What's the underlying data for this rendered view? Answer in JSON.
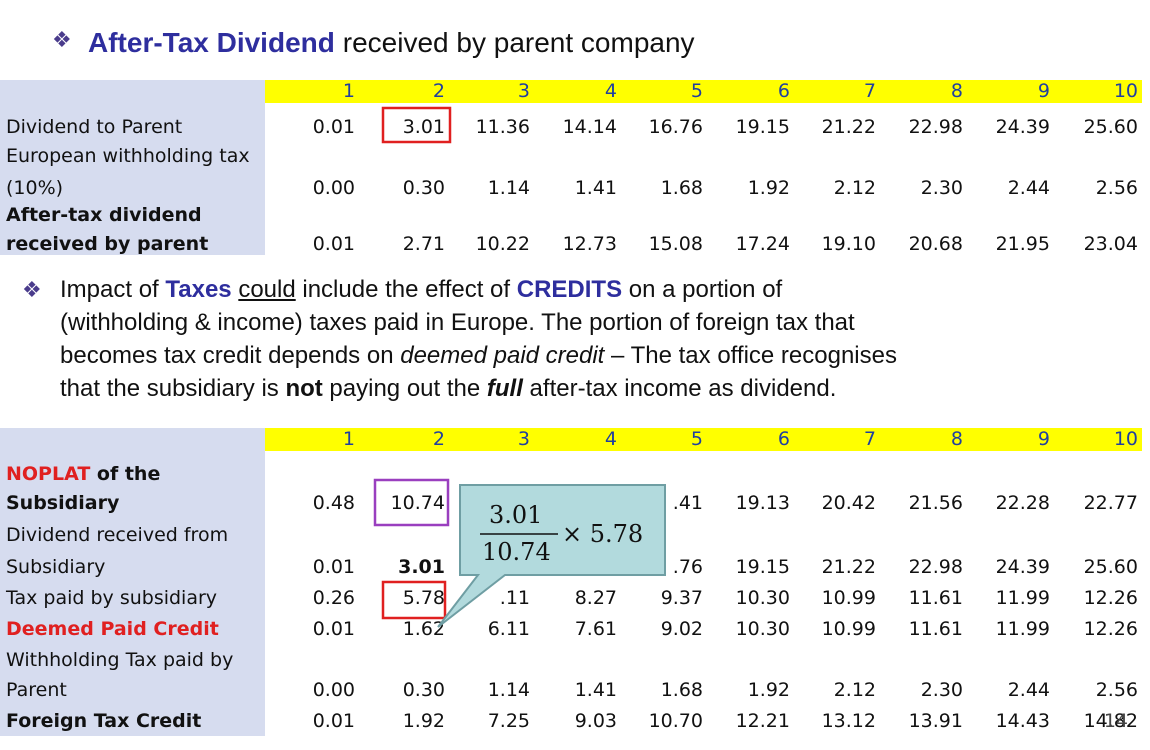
{
  "header": {
    "bullet": "❖",
    "title_bold": "After-Tax Dividend",
    "title_rest": " received by parent company"
  },
  "table1": {
    "columns": [
      "1",
      "2",
      "3",
      "4",
      "5",
      "6",
      "7",
      "8",
      "9",
      "10"
    ],
    "rows": [
      {
        "label": [
          "Dividend to Parent"
        ],
        "emphasis": "none",
        "values": [
          "0.01",
          "3.01",
          "11.36",
          "14.14",
          "16.76",
          "19.15",
          "21.22",
          "22.98",
          "24.39",
          "25.60"
        ]
      },
      {
        "label": [
          "European withholding tax",
          "(10%)"
        ],
        "emphasis": "none",
        "values": [
          "0.00",
          "0.30",
          "1.14",
          "1.41",
          "1.68",
          "1.92",
          "2.12",
          "2.30",
          "2.44",
          "2.56"
        ]
      },
      {
        "label": [
          "After-tax dividend",
          "received by parent"
        ],
        "emphasis": "bold",
        "values": [
          "0.01",
          "2.71",
          "10.22",
          "12.73",
          "15.08",
          "17.24",
          "19.10",
          "20.68",
          "21.95",
          "23.04"
        ]
      }
    ]
  },
  "paragraph": {
    "bullet": "❖",
    "lines": [
      [
        {
          "text": "Impact of ",
          "style": "plain"
        },
        {
          "text": "Taxes",
          "style": "blue-bold"
        },
        {
          "text": " ",
          "style": "plain"
        },
        {
          "text": "could",
          "style": "underline"
        },
        {
          "text": " include the effect of ",
          "style": "plain"
        },
        {
          "text": "CREDITS",
          "style": "blue-bold"
        },
        {
          "text": " on a portion of",
          "style": "plain"
        }
      ],
      [
        {
          "text": "(withholding & income) taxes paid in Europe. The portion of foreign tax that",
          "style": "plain"
        }
      ],
      [
        {
          "text": "becomes tax credit depends on ",
          "style": "plain"
        },
        {
          "text": "deemed paid credit",
          "style": "italic"
        },
        {
          "text": " – The tax office recognises",
          "style": "plain"
        }
      ],
      [
        {
          "text": "that the subsidiary is ",
          "style": "plain"
        },
        {
          "text": "not",
          "style": "bold"
        },
        {
          "text": " paying out the ",
          "style": "plain"
        },
        {
          "text": "full",
          "style": "bold-italic"
        },
        {
          "text": " after-tax income as dividend.",
          "style": "plain"
        }
      ]
    ]
  },
  "table2": {
    "columns": [
      "1",
      "2",
      "3",
      "4",
      "5",
      "6",
      "7",
      "8",
      "9",
      "10"
    ],
    "rows": [
      {
        "label": [
          "NOPLAT of the",
          "Subsidiary"
        ],
        "emphasis": "red-first-word",
        "values": [
          "0.48",
          "10.74",
          null,
          null,
          ".41",
          "19.13",
          "20.42",
          "21.56",
          "22.28",
          "22.77"
        ]
      },
      {
        "label": [
          "Dividend received from",
          "Subsidiary"
        ],
        "emphasis": "none",
        "values": [
          "0.01",
          "3.01",
          null,
          null,
          ".76",
          "19.15",
          "21.22",
          "22.98",
          "24.39",
          "25.60"
        ]
      },
      {
        "label": [
          "Tax paid by subsidiary"
        ],
        "emphasis": "none",
        "values": [
          "0.26",
          "5.78",
          ".11",
          "8.27",
          "9.37",
          "10.30",
          "10.99",
          "11.61",
          "11.99",
          "12.26"
        ]
      },
      {
        "label": [
          "Deemed Paid Credit"
        ],
        "emphasis": "red-bold",
        "values": [
          "0.01",
          "1.62",
          "6.11",
          "7.61",
          "9.02",
          "10.30",
          "10.99",
          "11.61",
          "11.99",
          "12.26"
        ]
      },
      {
        "label": [
          "Withholding Tax paid by",
          "Parent"
        ],
        "emphasis": "none",
        "values": [
          "0.00",
          "0.30",
          "1.14",
          "1.41",
          "1.68",
          "1.92",
          "2.12",
          "2.30",
          "2.44",
          "2.56"
        ]
      },
      {
        "label": [
          "Foreign Tax Credit"
        ],
        "emphasis": "bold",
        "values": [
          "0.01",
          "1.92",
          "7.25",
          "9.03",
          "10.70",
          "12.21",
          "13.12",
          "13.91",
          "14.43",
          "14.82"
        ]
      }
    ]
  },
  "callout": {
    "numerator": "3.01",
    "denominator": "10.74",
    "factor": "× 5.78"
  },
  "page_number": "14"
}
